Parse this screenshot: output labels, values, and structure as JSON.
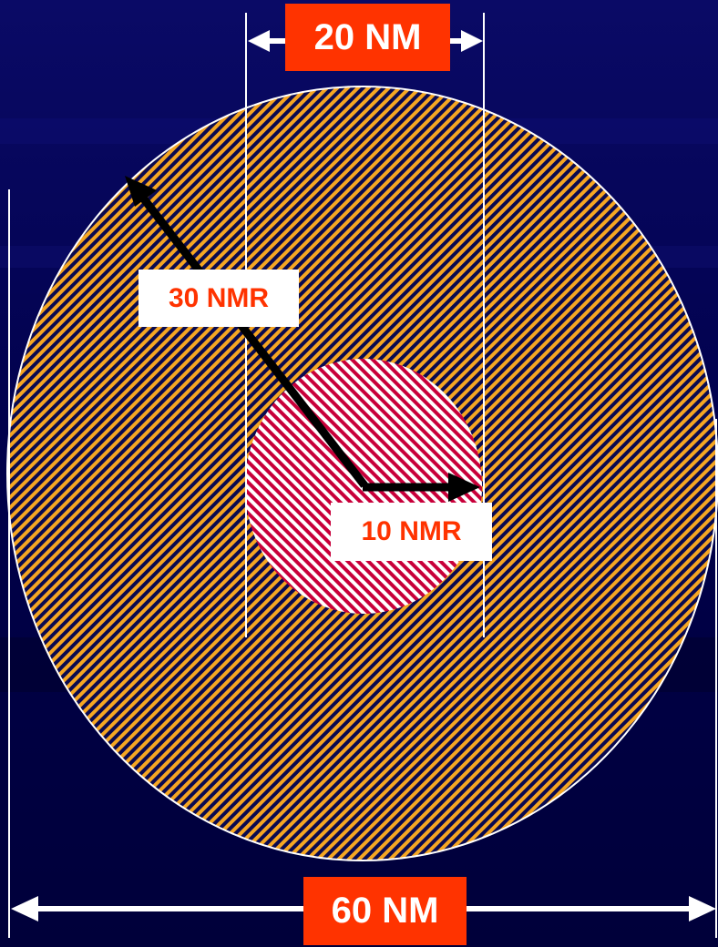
{
  "labels": {
    "inner_width": "20 NM",
    "outer_width": "60 NM",
    "outer_radius": "30 NMR",
    "inner_radius": "10 NMR"
  },
  "colors": {
    "background": "#00004a",
    "label_fill": "#ff3300",
    "outer_hatch": "#f5a623",
    "inner_hatch": "#c8003a",
    "arrow": "#000000",
    "lines": "#ffffff"
  }
}
